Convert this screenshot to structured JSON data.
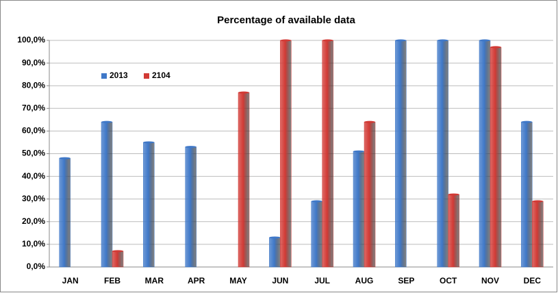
{
  "chart_data": {
    "type": "bar",
    "title": "Percentage of available data",
    "categories": [
      "JAN",
      "FEB",
      "MAR",
      "APR",
      "MAY",
      "JUN",
      "JUL",
      "AUG",
      "SEP",
      "OCT",
      "NOV",
      "DEC"
    ],
    "series": [
      {
        "name": "2013",
        "color": "#3f78c8",
        "values": [
          48,
          64,
          55,
          53,
          null,
          13,
          29,
          51,
          100,
          100,
          100,
          64
        ]
      },
      {
        "name": "2104",
        "color": "#d23a35",
        "values": [
          null,
          7,
          null,
          null,
          77,
          100,
          100,
          64,
          null,
          32,
          97,
          29
        ]
      }
    ],
    "ylim": [
      0,
      100
    ],
    "yticks": [
      {
        "value": 0,
        "label": "0,0%"
      },
      {
        "value": 10,
        "label": "10,0%"
      },
      {
        "value": 20,
        "label": "20,0%"
      },
      {
        "value": 30,
        "label": "30,0%"
      },
      {
        "value": 40,
        "label": "40,0%"
      },
      {
        "value": 50,
        "label": "50,0%"
      },
      {
        "value": 60,
        "label": "60,0%"
      },
      {
        "value": 70,
        "label": "70,0%"
      },
      {
        "value": 80,
        "label": "80,0%"
      },
      {
        "value": 90,
        "label": "90,0%"
      },
      {
        "value": 100,
        "label": "100,0%"
      }
    ],
    "grid": true,
    "legend": "upper left"
  }
}
